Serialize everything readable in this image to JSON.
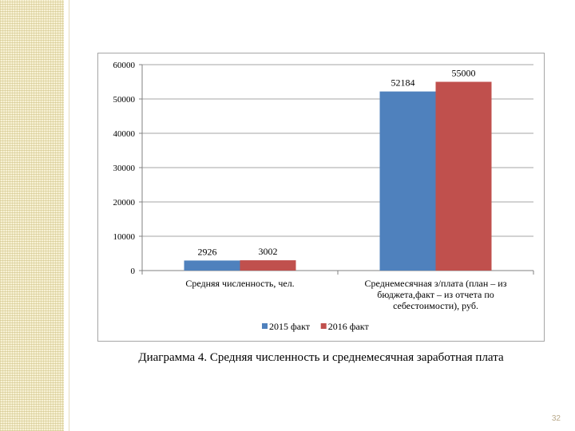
{
  "chart_data": {
    "type": "bar",
    "categories": [
      [
        "Средняя численность, чел."
      ],
      [
        "Среднемесячная з/плата (план – из",
        "бюджета,факт – из отчета по",
        "себестоимости), руб."
      ]
    ],
    "series": [
      {
        "name": "2015 факт",
        "values": [
          2926,
          52184
        ],
        "labels": [
          "2926",
          "52184"
        ],
        "color": "#4f81bd"
      },
      {
        "name": "2016 факт",
        "values": [
          3002,
          55000
        ],
        "labels": [
          "3002",
          "55000"
        ],
        "color": "#c0504d"
      }
    ],
    "ylim": [
      0,
      60000
    ],
    "yticks": [
      "0",
      "10000",
      "20000",
      "30000",
      "40000",
      "50000",
      "60000"
    ],
    "grid": true,
    "legend_position": "bottom"
  },
  "caption": "Диаграмма 4. Средняя численность и среднемесячная заработная плата",
  "page_number": "32"
}
